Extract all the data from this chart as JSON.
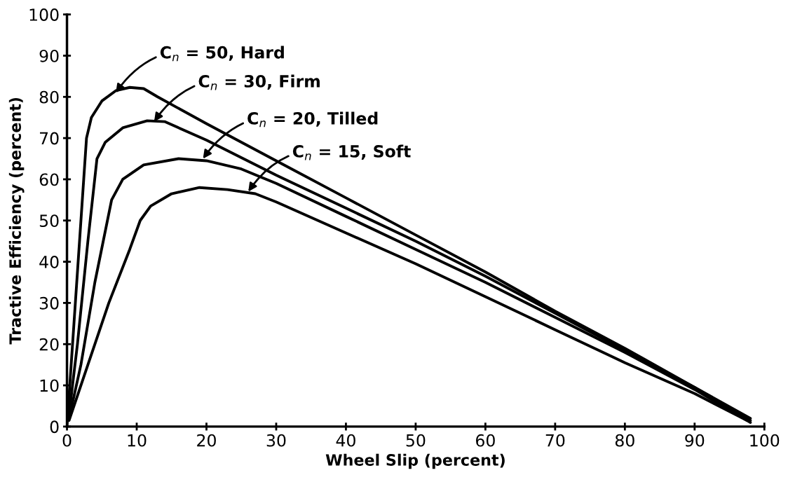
{
  "chart_data": {
    "type": "line",
    "xlabel": "Wheel Slip (percent)",
    "ylabel": "Tractive Efficiency (percent)",
    "xlim": [
      0,
      100
    ],
    "ylim": [
      0,
      100
    ],
    "xticks": [
      0,
      10,
      20,
      30,
      40,
      50,
      60,
      70,
      80,
      90,
      100
    ],
    "yticks": [
      0,
      10,
      20,
      30,
      40,
      50,
      60,
      70,
      80,
      90,
      100
    ],
    "grid": false,
    "marker": "none",
    "line_style": "solid",
    "series": [
      {
        "color": "#000000",
        "x": [
          0,
          1,
          2,
          2.8,
          3.5,
          5,
          7,
          9,
          11,
          13,
          20,
          30,
          40,
          50,
          60,
          70,
          80,
          90,
          98
        ],
        "values": [
          0,
          25,
          50,
          70,
          75,
          79,
          81.5,
          82.3,
          82,
          80,
          73.5,
          64.5,
          55.5,
          46.5,
          37.5,
          28,
          19,
          9.5,
          2
        ]
      },
      {
        "color": "#000000",
        "x": [
          0.3,
          1.5,
          3,
          4.3,
          5.5,
          8,
          11.5,
          14,
          20,
          30,
          40,
          50,
          60,
          70,
          80,
          90,
          98
        ],
        "values": [
          3,
          20,
          45,
          65,
          69,
          72.5,
          74.2,
          74,
          69.5,
          61,
          53,
          45,
          36.5,
          27.5,
          18.5,
          9.5,
          1.5
        ]
      },
      {
        "color": "#000000",
        "x": [
          0.3,
          2,
          4,
          6.4,
          8,
          11,
          16,
          20,
          25,
          30,
          40,
          50,
          60,
          70,
          80,
          90,
          98
        ],
        "values": [
          2,
          15,
          35,
          55,
          60,
          63.5,
          65,
          64.5,
          62.5,
          59,
          51,
          43,
          35,
          26.5,
          18,
          9,
          1
        ]
      },
      {
        "color": "#000000",
        "x": [
          0.3,
          3,
          6,
          9,
          10.5,
          12,
          15,
          19,
          23,
          27,
          30,
          40,
          50,
          60,
          70,
          80,
          90,
          97.5
        ],
        "values": [
          1.5,
          15,
          30,
          43,
          50,
          53.5,
          56.5,
          58,
          57.5,
          56.5,
          54.5,
          47,
          39.5,
          31.5,
          23.5,
          15.5,
          8,
          1.5
        ]
      }
    ],
    "annotations": [
      {
        "text": "C$_{n}$ = 50, Hard",
        "x": 7,
        "y": 81
      },
      {
        "text": "C$_{n}$ = 30, Firm",
        "x": 12.5,
        "y": 74
      },
      {
        "text": "C$_{n}$ = 20, Tilled",
        "x": 19.5,
        "y": 65
      },
      {
        "text": "C$_{n}$ = 15, Soft",
        "x": 26,
        "y": 57
      }
    ]
  }
}
